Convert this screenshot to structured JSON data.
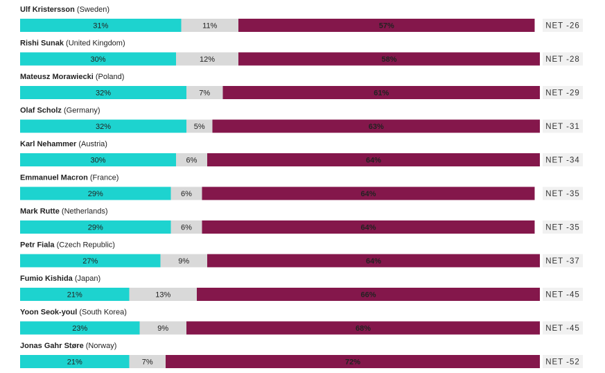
{
  "chart_data": {
    "type": "stacked-bar-horizontal",
    "names": [
      "Ulf Kristersson",
      "Rishi Sunak",
      "Mateusz Morawiecki",
      "Olaf Scholz",
      "Karl Nehammer",
      "Emmanuel Macron",
      "Mark Rutte",
      "Petr Fiala",
      "Fumio Kishida",
      "Yoon Seok-youl",
      "Jonas Gahr Støre"
    ],
    "countries": [
      "(Sweden)",
      "(United Kingdom)",
      "(Poland)",
      "(Germany)",
      "(Austria)",
      "(France)",
      "(Netherlands)",
      "(Czech Republic)",
      "(Japan)",
      "(South Korea)",
      "(Norway)"
    ],
    "series": [
      {
        "color": "#1dd3cf",
        "text_color": "#333333",
        "values": [
          31,
          30,
          32,
          32,
          30,
          29,
          29,
          27,
          21,
          23,
          21
        ],
        "value_labels": [
          "31%",
          "30%",
          "32%",
          "32%",
          "30%",
          "29%",
          "29%",
          "27%",
          "21%",
          "23%",
          "21%"
        ]
      },
      {
        "color": "#d9d9d9",
        "text_color": "#333333",
        "values": [
          11,
          12,
          7,
          5,
          6,
          6,
          6,
          9,
          13,
          9,
          7
        ],
        "value_labels": [
          "11%",
          "12%",
          "7%",
          "5%",
          "6%",
          "6%",
          "6%",
          "9%",
          "13%",
          "9%",
          "7%"
        ]
      },
      {
        "color": "#84174b",
        "text_color": "#ffffff",
        "values": [
          57,
          58,
          61,
          63,
          64,
          64,
          64,
          64,
          66,
          68,
          72
        ],
        "value_labels": [
          "57%",
          "58%",
          "61%",
          "63%",
          "64%",
          "64%",
          "64%",
          "64%",
          "66%",
          "68%",
          "72%"
        ]
      }
    ],
    "net": {
      "values": [
        -26,
        -28,
        -29,
        -31,
        -34,
        -35,
        -35,
        -37,
        -45,
        -45,
        -52
      ],
      "value_labels": [
        "NET -26",
        "NET -28",
        "NET -29",
        "NET -31",
        "NET -34",
        "NET -35",
        "NET -35",
        "NET -37",
        "NET -45",
        "NET -45",
        "NET -52"
      ]
    }
  }
}
